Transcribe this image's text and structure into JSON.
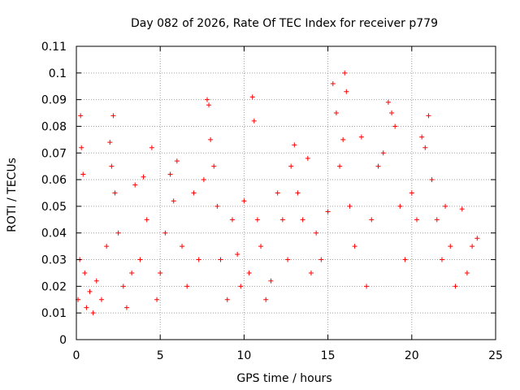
{
  "chart_data": {
    "type": "scatter",
    "title": "Day 082 of 2026, Rate Of TEC Index for receiver p779",
    "xlabel": "GPS time / hours",
    "ylabel": "ROTI / TECUs",
    "xlim": [
      0,
      25
    ],
    "ylim": [
      0,
      0.11
    ],
    "xticks": [
      0,
      5,
      10,
      15,
      20,
      25
    ],
    "yticks": [
      0,
      0.01,
      0.02,
      0.03,
      0.04,
      0.05,
      0.06,
      0.07,
      0.08,
      0.09,
      0.1,
      0.11
    ],
    "grid": true,
    "marker": "+",
    "color": "#ff0000",
    "series": [
      {
        "name": "ROTI",
        "x": [
          0.1,
          0.2,
          0.25,
          0.3,
          0.4,
          0.5,
          0.6,
          0.8,
          1.0,
          1.2,
          1.5,
          1.8,
          2.0,
          2.1,
          2.2,
          2.3,
          2.5,
          2.8,
          3.0,
          3.3,
          3.5,
          3.8,
          4.0,
          4.2,
          4.5,
          4.8,
          5.0,
          5.3,
          5.6,
          5.8,
          6.0,
          6.3,
          6.6,
          7.0,
          7.3,
          7.6,
          7.8,
          7.9,
          8.0,
          8.2,
          8.4,
          8.6,
          9.0,
          9.3,
          9.6,
          9.8,
          10.0,
          10.3,
          10.5,
          10.6,
          10.8,
          11.0,
          11.3,
          11.6,
          12.0,
          12.3,
          12.6,
          12.8,
          13.0,
          13.2,
          13.5,
          13.8,
          14.0,
          14.3,
          14.6,
          15.0,
          15.3,
          15.5,
          15.7,
          15.9,
          16.0,
          16.1,
          16.3,
          16.6,
          17.0,
          17.3,
          17.6,
          18.0,
          18.3,
          18.6,
          18.8,
          19.0,
          19.3,
          19.6,
          20.0,
          20.3,
          20.6,
          20.8,
          21.0,
          21.2,
          21.5,
          21.8,
          22.0,
          22.3,
          22.6,
          23.0,
          23.3,
          23.6,
          23.9
        ],
        "y": [
          0.015,
          0.03,
          0.084,
          0.072,
          0.062,
          0.025,
          0.012,
          0.018,
          0.01,
          0.022,
          0.015,
          0.035,
          0.074,
          0.065,
          0.084,
          0.055,
          0.04,
          0.02,
          0.012,
          0.025,
          0.058,
          0.03,
          0.061,
          0.045,
          0.072,
          0.015,
          0.025,
          0.04,
          0.062,
          0.052,
          0.067,
          0.035,
          0.02,
          0.055,
          0.03,
          0.06,
          0.09,
          0.088,
          0.075,
          0.065,
          0.05,
          0.03,
          0.015,
          0.045,
          0.032,
          0.02,
          0.052,
          0.025,
          0.091,
          0.082,
          0.045,
          0.035,
          0.015,
          0.022,
          0.055,
          0.045,
          0.03,
          0.065,
          0.073,
          0.055,
          0.045,
          0.068,
          0.025,
          0.04,
          0.03,
          0.048,
          0.096,
          0.085,
          0.065,
          0.075,
          0.1,
          0.093,
          0.05,
          0.035,
          0.076,
          0.02,
          0.045,
          0.065,
          0.07,
          0.089,
          0.085,
          0.08,
          0.05,
          0.03,
          0.055,
          0.045,
          0.076,
          0.072,
          0.084,
          0.06,
          0.045,
          0.03,
          0.05,
          0.035,
          0.02,
          0.049,
          0.025,
          0.035,
          0.038
        ]
      }
    ]
  }
}
